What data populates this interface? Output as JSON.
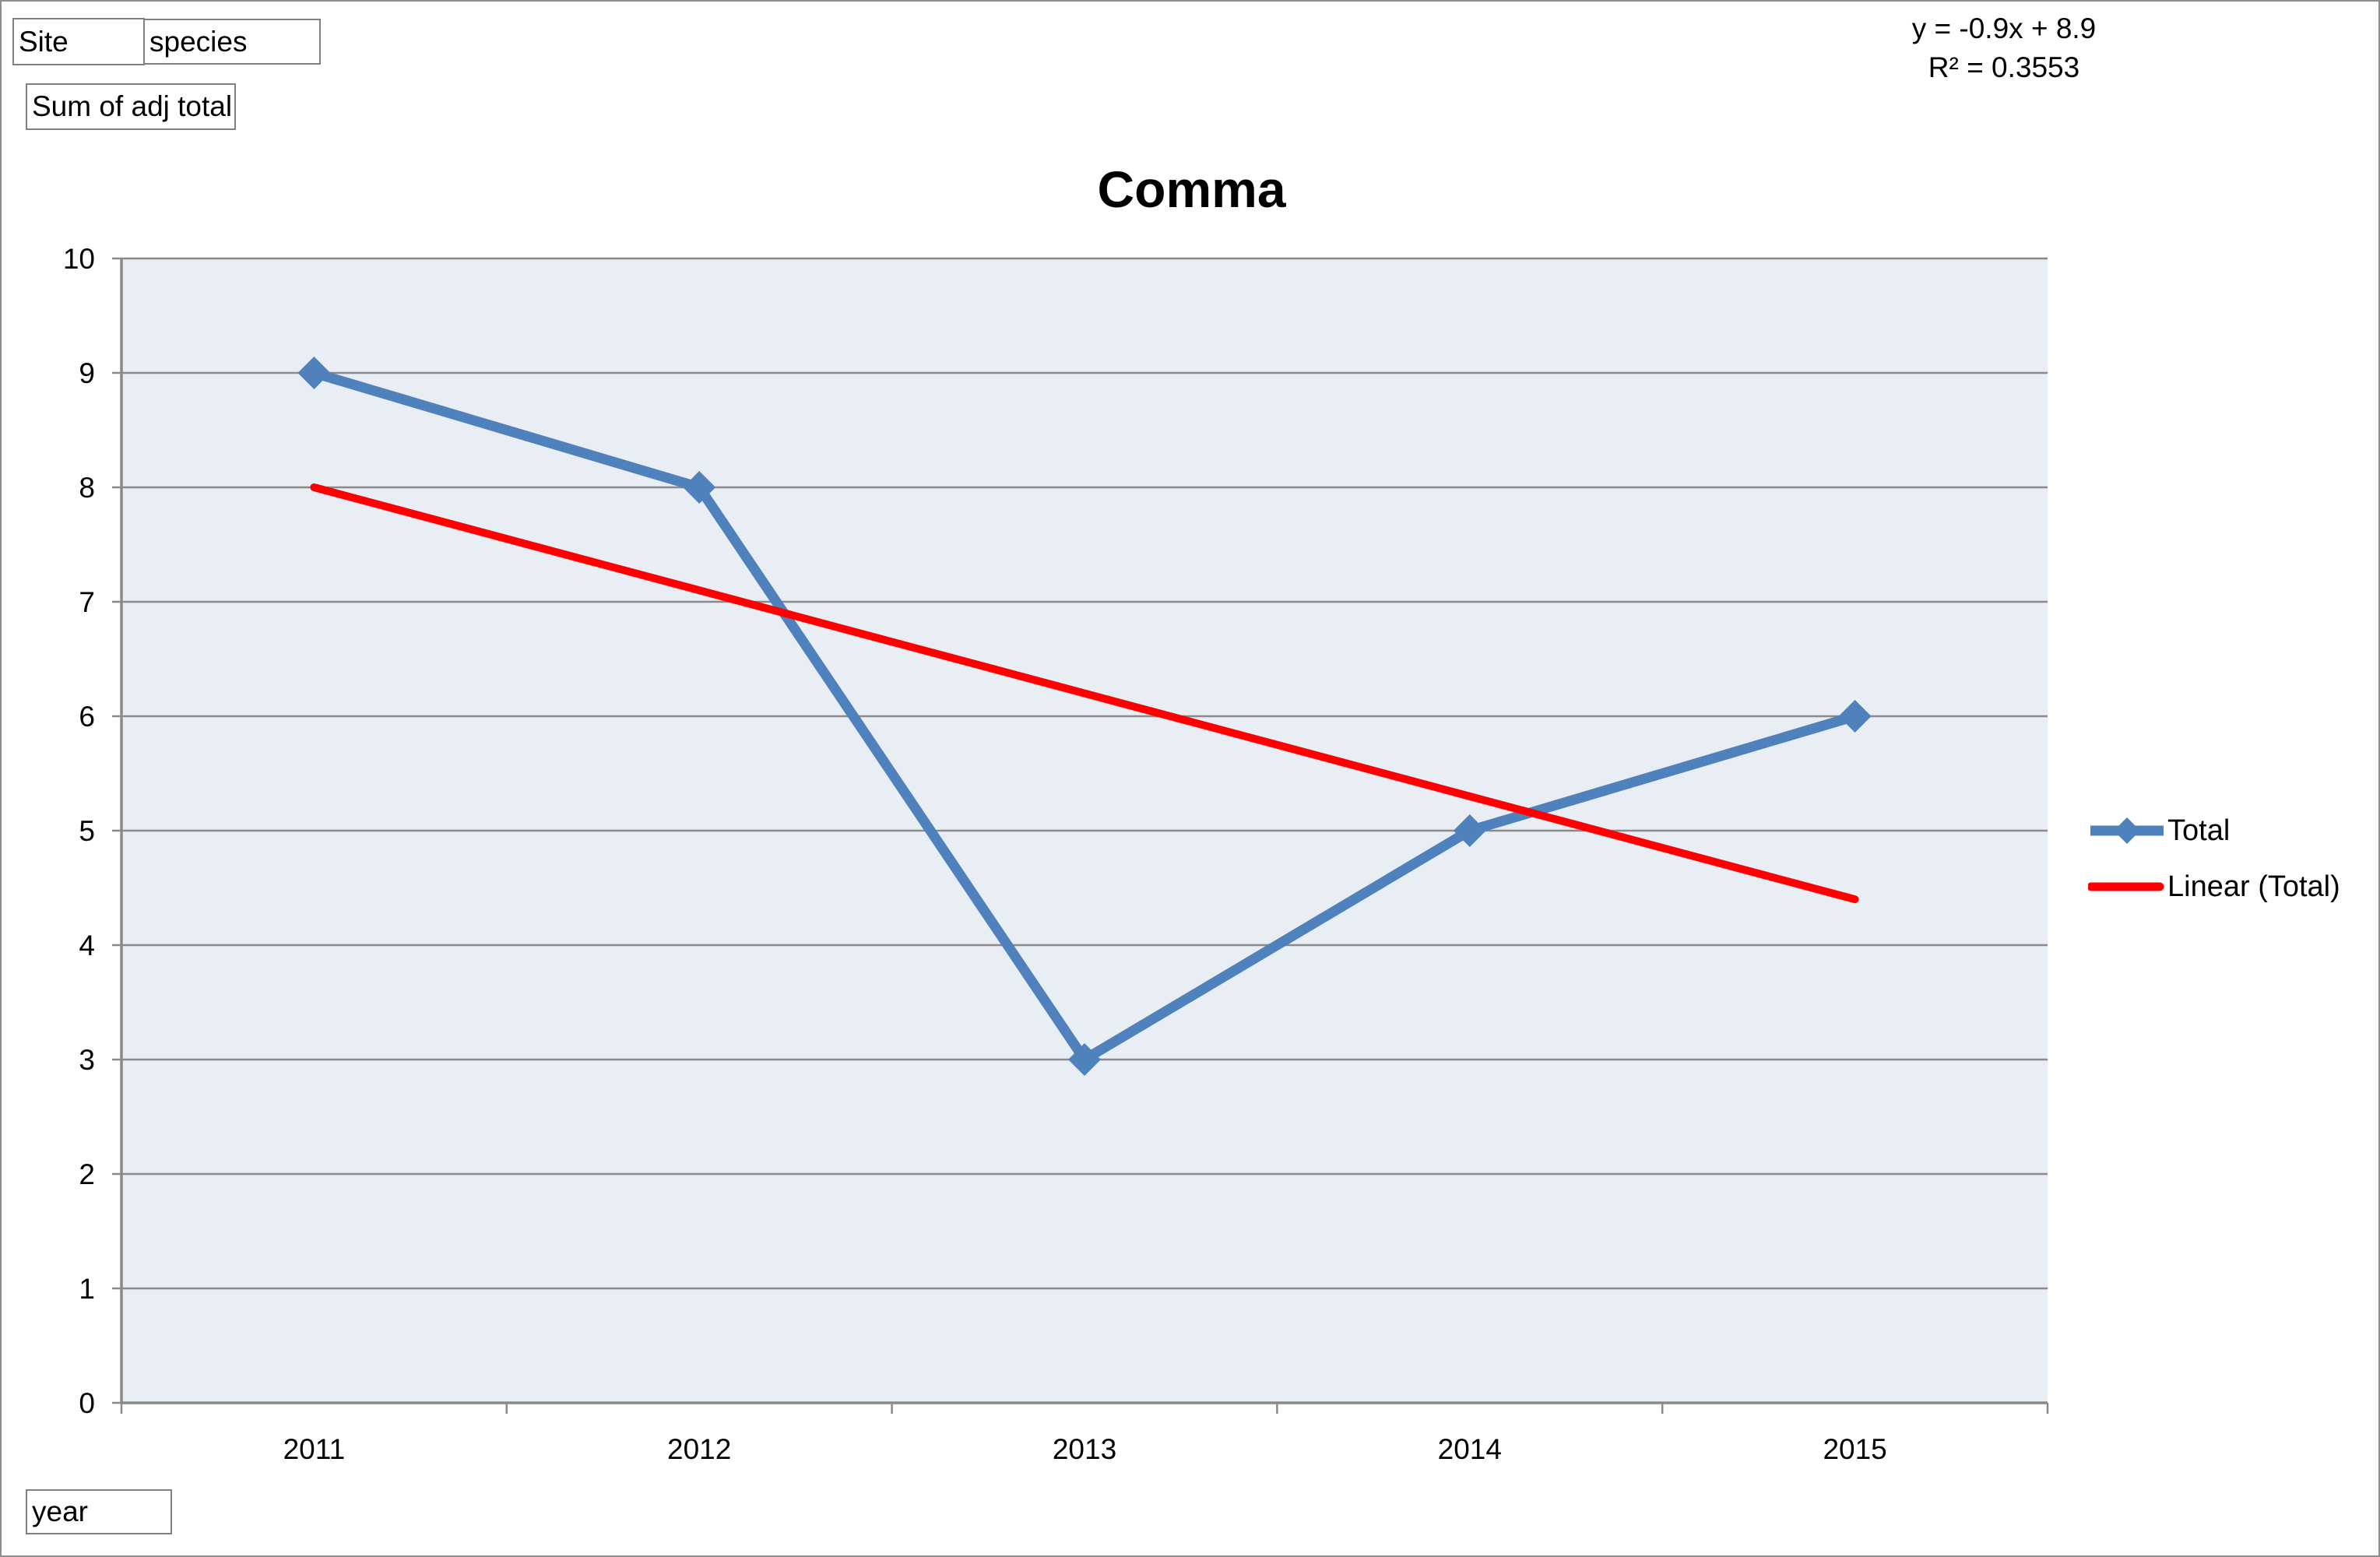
{
  "pivot_fields": {
    "site": "Site",
    "species": "species",
    "value": "Sum of adj total",
    "axis": "year"
  },
  "title": "Comma",
  "trendline_label": {
    "equation": "y = -0.9x + 8.9",
    "r_squared": "R² = 0.3553"
  },
  "legend": [
    {
      "name": "Total",
      "swatch": "line-with-diamond-marker",
      "color": "#4F81BD"
    },
    {
      "name": "Linear (Total)",
      "swatch": "line",
      "color": "#FF0000"
    }
  ],
  "chart_data": {
    "type": "line",
    "title": "Comma",
    "categories": [
      "2011",
      "2012",
      "2013",
      "2014",
      "2015"
    ],
    "series": [
      {
        "name": "Total",
        "values": [
          9,
          8,
          3,
          5,
          6
        ],
        "color": "#4F81BD",
        "marker": "diamond"
      }
    ],
    "trendline": {
      "name": "Linear (Total)",
      "slope": -0.9,
      "intercept": 8.9,
      "r2": 0.3553,
      "color": "#FF0000",
      "equation_text": "y = -0.9x + 8.9",
      "r2_text": "R² = 0.3553"
    },
    "ylim": [
      0,
      10
    ],
    "yticks": [
      0,
      1,
      2,
      3,
      4,
      5,
      6,
      7,
      8,
      9,
      10
    ],
    "grid": true,
    "legend_position": "right"
  },
  "colors": {
    "series_blue": "#4F81BD",
    "trend_red": "#FF0000",
    "plot_fill": "#E9EDF4",
    "grid_line": "#8A8A8A",
    "axis_line": "#8A8A8A",
    "chart_border": "#8E8E8E",
    "button_border": "#7F7F7F",
    "text": "#000000"
  }
}
